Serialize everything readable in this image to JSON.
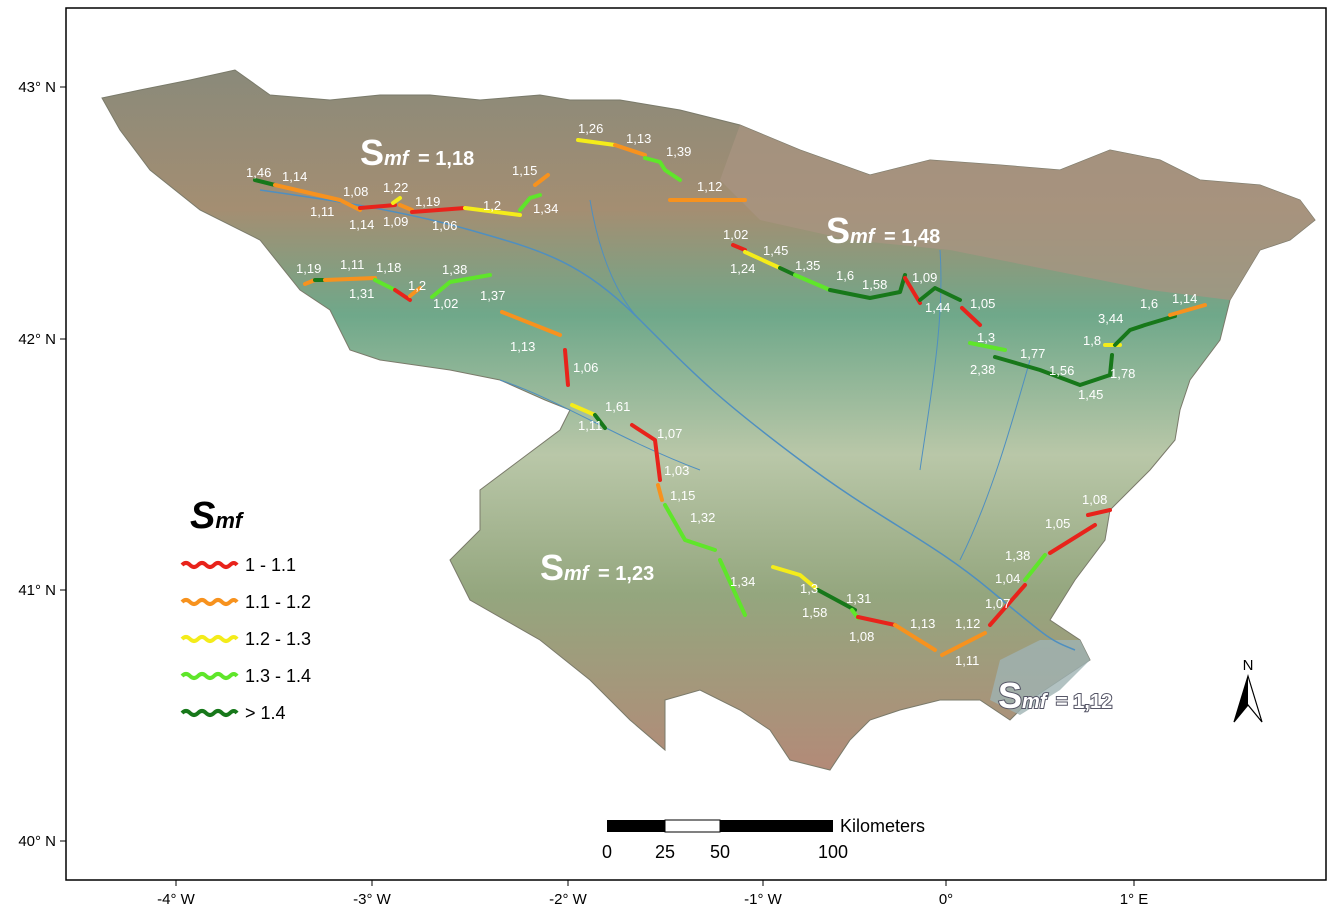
{
  "map": {
    "lat_ticks": [
      "43° N",
      "42° N",
      "41° N",
      "40° N"
    ],
    "lon_ticks": [
      "-4° W",
      "-3° W",
      "-2° W",
      "-1° W",
      "0°",
      "1° E"
    ],
    "regions": [
      {
        "symbol": "S",
        "subscript": "mf",
        "value": "= 1,18"
      },
      {
        "symbol": "S",
        "subscript": "mf",
        "value": "= 1,48"
      },
      {
        "symbol": "S",
        "subscript": "mf",
        "value": "= 1,23"
      },
      {
        "symbol": "S",
        "subscript": "mf",
        "value": "= 1,12"
      }
    ],
    "segment_labels": [
      "1,46",
      "1,14",
      "1,08",
      "1,22",
      "1,19",
      "1,15",
      "1,11",
      "1,14",
      "1,09",
      "1,06",
      "1,2",
      "1,34",
      "1,26",
      "1,13",
      "1,39",
      "1,12",
      "1,19",
      "1,11",
      "1,18",
      "1,2",
      "1,31",
      "1,38",
      "1,02",
      "1,37",
      "1,13",
      "1,06",
      "1,11",
      "1,61",
      "1,07",
      "1,03",
      "1,15",
      "1,32",
      "1,34",
      "1,02",
      "1,45",
      "1,24",
      "1,35",
      "1,6",
      "1,58",
      "1,09",
      "1,44",
      "1,05",
      "1,3",
      "1,77",
      "2,38",
      "1,56",
      "1,45",
      "1,78",
      "3,44",
      "1,8",
      "1,6",
      "1,14",
      "1,3",
      "1,58",
      "1,31",
      "1,08",
      "1,13",
      "1,12",
      "1,11",
      "1,07",
      "1,04",
      "1,38",
      "1,05",
      "1,08"
    ]
  },
  "legend": {
    "title_symbol": "S",
    "title_subscript": "mf",
    "items": [
      {
        "label": "1 - 1.1",
        "color": "#e8231b"
      },
      {
        "label": "1.1 - 1.2",
        "color": "#f7921e"
      },
      {
        "label": "1.2 - 1.3",
        "color": "#f4ec1a"
      },
      {
        "label": "1.3 - 1.4",
        "color": "#5fe62a"
      },
      {
        "label": "> 1.4",
        "color": "#17781a"
      }
    ]
  },
  "scale_bar": {
    "unit": "Kilometers",
    "labels": [
      "0",
      "25",
      "50",
      "100"
    ]
  },
  "north_arrow": {
    "label": "N"
  }
}
